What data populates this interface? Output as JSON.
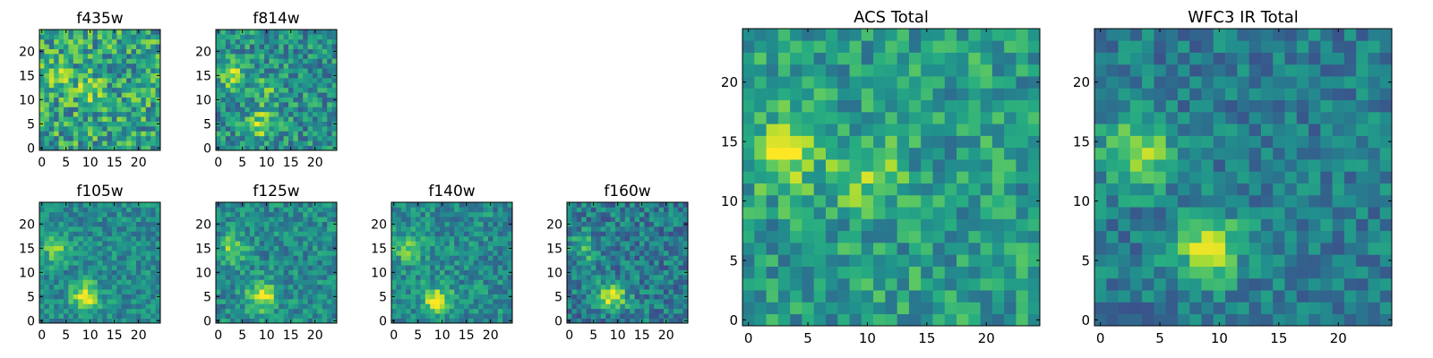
{
  "figure": {
    "colormap": [
      "#440154",
      "#472c7a",
      "#3b518b",
      "#2c718e",
      "#21908d",
      "#27ad81",
      "#5cc863",
      "#aadc32",
      "#fde725"
    ]
  },
  "chart_data": [
    {
      "type": "heatmap",
      "title": "f435w",
      "grid_size": 25,
      "xticks": [
        0,
        5,
        10,
        15,
        20
      ],
      "yticks": [
        0,
        5,
        10,
        15,
        20
      ],
      "peaks": [
        [
          3,
          14,
          0.25
        ],
        [
          10,
          12,
          0.2
        ]
      ],
      "base": 0.58,
      "noise": 0.55,
      "seed": 11
    },
    {
      "type": "heatmap",
      "title": "f814w",
      "grid_size": 25,
      "xticks": [
        0,
        5,
        10,
        15,
        20
      ],
      "yticks": [
        0,
        5,
        10,
        15,
        20
      ],
      "peaks": [
        [
          3,
          15,
          0.35
        ],
        [
          9,
          5,
          0.35
        ],
        [
          10,
          12,
          0.2
        ]
      ],
      "base": 0.5,
      "noise": 0.45,
      "seed": 23
    },
    {
      "type": "heatmap",
      "title": "f105w",
      "grid_size": 25,
      "xticks": [
        0,
        5,
        10,
        15,
        20
      ],
      "yticks": [
        0,
        5,
        10,
        15,
        20
      ],
      "peaks": [
        [
          9,
          5,
          0.5
        ],
        [
          3,
          15,
          0.3
        ]
      ],
      "base": 0.48,
      "noise": 0.32,
      "seed": 37
    },
    {
      "type": "heatmap",
      "title": "f125w",
      "grid_size": 25,
      "xticks": [
        0,
        5,
        10,
        15,
        20
      ],
      "yticks": [
        0,
        5,
        10,
        15,
        20
      ],
      "peaks": [
        [
          9,
          5,
          0.5
        ],
        [
          3,
          15,
          0.3
        ]
      ],
      "base": 0.48,
      "noise": 0.35,
      "seed": 41
    },
    {
      "type": "heatmap",
      "title": "f140w",
      "grid_size": 25,
      "xticks": [
        0,
        5,
        10,
        15,
        20
      ],
      "yticks": [
        0,
        5,
        10,
        15,
        20
      ],
      "peaks": [
        [
          9,
          4,
          0.5
        ],
        [
          3,
          15,
          0.3
        ]
      ],
      "base": 0.48,
      "noise": 0.35,
      "seed": 53
    },
    {
      "type": "heatmap",
      "title": "f160w",
      "grid_size": 25,
      "xticks": [
        0,
        5,
        10,
        15,
        20
      ],
      "yticks": [
        0,
        5,
        10,
        15,
        20
      ],
      "peaks": [
        [
          9,
          5,
          0.5
        ],
        [
          3,
          15,
          0.3
        ]
      ],
      "base": 0.42,
      "noise": 0.4,
      "seed": 67
    },
    {
      "type": "heatmap",
      "title": "ACS Total",
      "grid_size": 25,
      "xticks": [
        0,
        5,
        10,
        15,
        20
      ],
      "yticks": [
        0,
        5,
        10,
        15,
        20
      ],
      "peaks": [
        [
          3,
          14,
          0.4
        ],
        [
          10,
          12,
          0.25
        ]
      ],
      "base": 0.55,
      "noise": 0.4,
      "seed": 79
    },
    {
      "type": "heatmap",
      "title": "WFC3 IR Total",
      "grid_size": 25,
      "xticks": [
        0,
        5,
        10,
        15,
        20
      ],
      "yticks": [
        0,
        5,
        10,
        15,
        20
      ],
      "peaks": [
        [
          3,
          14,
          0.45
        ],
        [
          9,
          6,
          0.45
        ]
      ],
      "base": 0.42,
      "noise": 0.32,
      "seed": 97
    }
  ]
}
